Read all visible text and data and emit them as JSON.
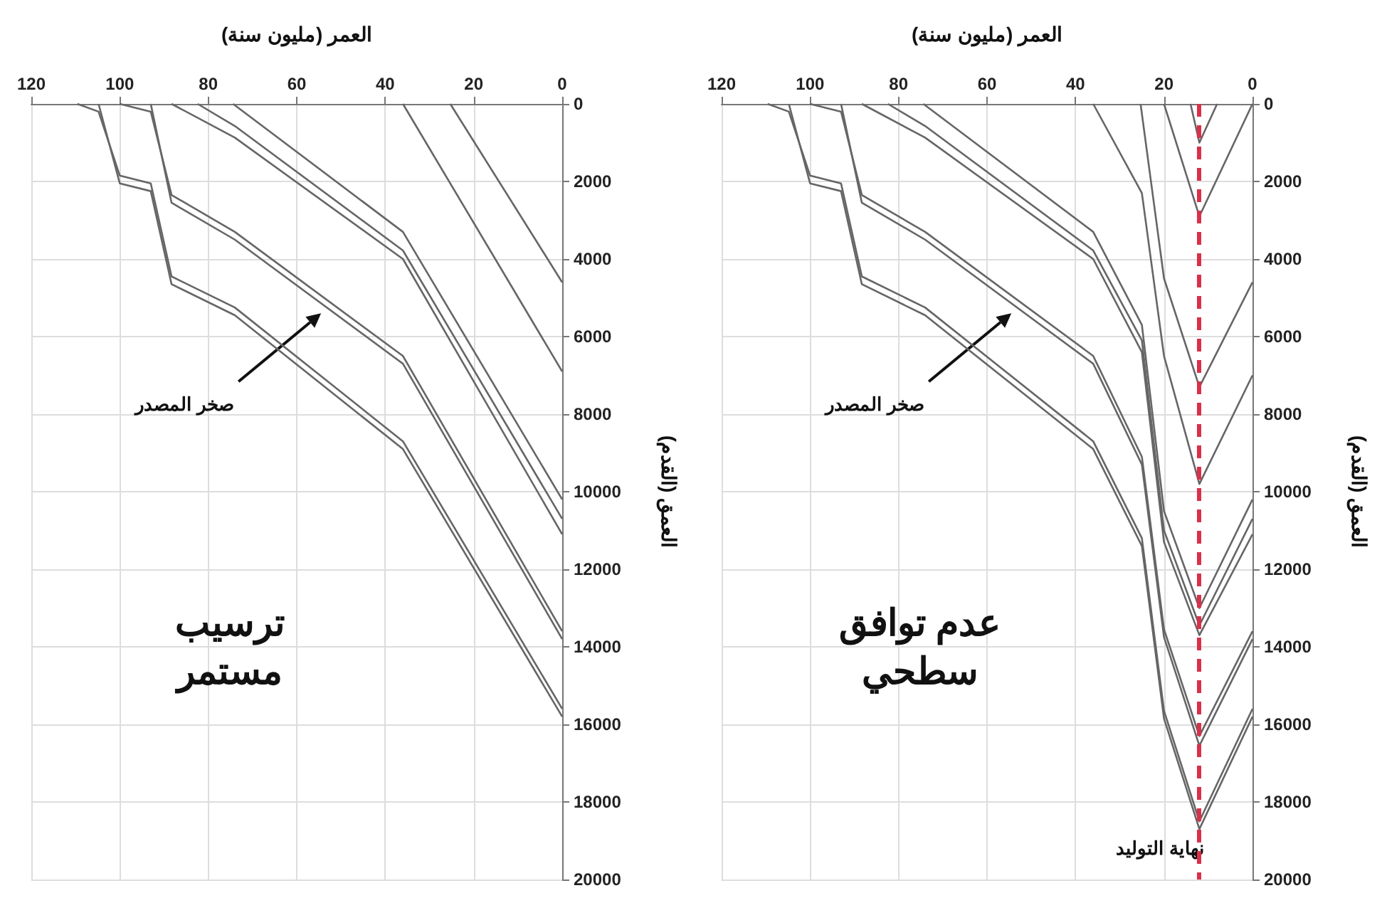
{
  "chart_data": [
    {
      "type": "line",
      "xlabel": "العمر (مليون سنة)",
      "ylabel": "العمق (القدم)",
      "xlim": [
        120,
        0
      ],
      "ylim": [
        20000,
        0
      ],
      "xticks": [
        120,
        100,
        80,
        60,
        40,
        20,
        0
      ],
      "yticks": [
        0,
        2000,
        4000,
        6000,
        8000,
        10000,
        12000,
        14000,
        16000,
        18000,
        20000
      ],
      "grid": true,
      "annotations": [
        "صخر المصدر",
        "ترسيب\nمستمر"
      ],
      "series": [
        {
          "color": "#666666",
          "x": [
            109.6,
            104.8,
            100,
            93,
            88.3,
            74,
            36,
            0
          ],
          "values": [
            0,
            200,
            1850,
            2050,
            4450,
            5250,
            8700,
            15600
          ]
        },
        {
          "color": "#666666",
          "x": [
            104.8,
            100,
            93,
            88.3,
            74,
            36,
            0
          ],
          "values": [
            0,
            2050,
            2250,
            4650,
            5450,
            8900,
            15800
          ]
        },
        {
          "color": "#666666",
          "x": [
            100,
            93,
            88.3,
            74,
            36,
            0
          ],
          "values": [
            0,
            200,
            2350,
            3300,
            6500,
            13600
          ]
        },
        {
          "color": "#666666",
          "x": [
            93,
            88.3,
            74,
            36,
            0
          ],
          "values": [
            0,
            2550,
            3500,
            6700,
            13800
          ]
        },
        {
          "color": "#666666",
          "x": [
            88.3,
            74,
            36,
            0
          ],
          "values": [
            0,
            870,
            4000,
            11100
          ]
        },
        {
          "color": "#666666",
          "x": [
            82.4,
            74,
            36,
            0
          ],
          "values": [
            0,
            570,
            3780,
            10700
          ]
        },
        {
          "color": "#666666",
          "x": [
            74.4,
            36,
            0
          ],
          "values": [
            0,
            3300,
            10200
          ]
        },
        {
          "color": "#666666",
          "x": [
            36,
            0
          ],
          "values": [
            0,
            6900
          ]
        },
        {
          "color": "#666666",
          "x": [
            25.3,
            0
          ],
          "values": [
            0,
            4600
          ]
        }
      ]
    },
    {
      "type": "line",
      "xlabel": "العمر (مليون سنة)",
      "ylabel": "العمق (القدم)",
      "xlim": [
        120,
        0
      ],
      "ylim": [
        20000,
        0
      ],
      "xticks": [
        120,
        100,
        80,
        60,
        40,
        20,
        0
      ],
      "yticks": [
        0,
        2000,
        4000,
        6000,
        8000,
        10000,
        12000,
        14000,
        16000,
        18000,
        20000
      ],
      "grid": true,
      "annotations": [
        "صخر المصدر",
        "عدم توافق\nسطحي"
      ],
      "ref_lines": [
        {
          "axis": "x",
          "value": 12,
          "label": "نهاية التوليد",
          "color": "#d9304a",
          "line_style": "dashed"
        }
      ],
      "series": [
        {
          "color": "#666666",
          "x": [
            109.6,
            104.8,
            100,
            93,
            88.3,
            74,
            36,
            25,
            20,
            12,
            0
          ],
          "values": [
            0,
            200,
            1850,
            2050,
            4450,
            5250,
            8700,
            11200,
            15650,
            18500,
            15600
          ]
        },
        {
          "color": "#666666",
          "x": [
            104.8,
            100,
            93,
            88.3,
            74,
            36,
            25,
            20,
            12,
            0
          ],
          "values": [
            0,
            2050,
            2250,
            4650,
            5450,
            8900,
            11400,
            15850,
            18700,
            15800
          ]
        },
        {
          "color": "#666666",
          "x": [
            100,
            93,
            88.3,
            74,
            36,
            25,
            20,
            12,
            0
          ],
          "values": [
            0,
            200,
            2350,
            3300,
            6500,
            9100,
            13550,
            16300,
            13600
          ]
        },
        {
          "color": "#666666",
          "x": [
            93,
            88.3,
            74,
            36,
            25,
            20,
            12,
            0
          ],
          "values": [
            0,
            2550,
            3500,
            6700,
            9300,
            13750,
            16550,
            13800
          ]
        },
        {
          "color": "#666666",
          "x": [
            88.3,
            74,
            36,
            25,
            20,
            12,
            0
          ],
          "values": [
            0,
            870,
            4000,
            6400,
            11300,
            13700,
            11100
          ]
        },
        {
          "color": "#666666",
          "x": [
            82.4,
            74,
            36,
            25,
            20,
            12,
            0
          ],
          "values": [
            0,
            570,
            3780,
            6100,
            11000,
            13450,
            10700
          ]
        },
        {
          "color": "#666666",
          "x": [
            74.4,
            36,
            25,
            20,
            12,
            0
          ],
          "values": [
            0,
            3300,
            5700,
            10500,
            13000,
            10200
          ]
        },
        {
          "color": "#666666",
          "x": [
            36,
            25,
            20,
            12,
            0
          ],
          "values": [
            0,
            2300,
            6500,
            9800,
            7000
          ]
        },
        {
          "color": "#666666",
          "x": [
            25.3,
            20,
            12,
            0
          ],
          "values": [
            0,
            4500,
            7300,
            4600
          ]
        },
        {
          "color": "#666666",
          "x": [
            20,
            12,
            0
          ],
          "values": [
            0,
            2900,
            0
          ]
        },
        {
          "color": "#666666",
          "x": [
            14,
            12,
            8
          ],
          "values": [
            0,
            1000,
            0
          ]
        }
      ]
    }
  ]
}
